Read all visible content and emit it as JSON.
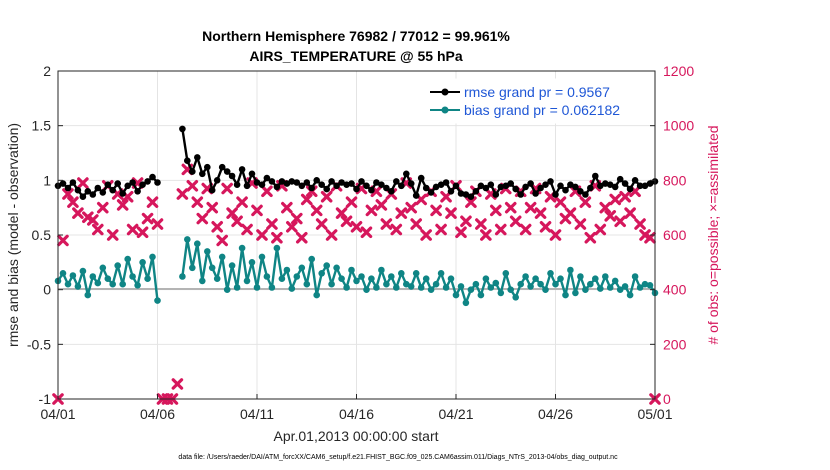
{
  "chart_data": {
    "type": "line",
    "title": "Northern Hemisphere 76982 / 77012 = 99.961%",
    "subtitle": "AIRS_TEMPERATURE @ 55 hPa",
    "xlabel": "Apr.01,2013 00:00:00 start",
    "ylabel": "rmse and bias (model - observation)",
    "ylabel_right": "# of obs: o=possible; ×=assimilated",
    "footer": "data file: /Users/raeder/DAI/ATM_forcXX/CAM6_setup/f.e21.FHIST_BGC.f09_025.CAM6assim.011/Diags_NTrS_2013-04/obs_diag_output.nc",
    "xlim": [
      0,
      30
    ],
    "ylim": [
      -1,
      2
    ],
    "ylim_right": [
      0,
      1200
    ],
    "x_ticks": [
      0,
      5,
      10,
      15,
      20,
      25,
      30
    ],
    "x_tick_labels": [
      "04/01",
      "04/06",
      "04/11",
      "04/16",
      "04/21",
      "04/26",
      "05/01"
    ],
    "y_ticks": [
      -1,
      -0.5,
      0,
      0.5,
      1,
      1.5,
      2
    ],
    "y_tick_labels": [
      "-1",
      "-0.5",
      "0",
      "0.5",
      "1",
      "1.5",
      "2"
    ],
    "y_right_ticks": [
      0,
      200,
      400,
      600,
      800,
      1000,
      1200
    ],
    "y_right_tick_labels": [
      "0",
      "200",
      "400",
      "600",
      "800",
      "1000",
      "1200"
    ],
    "grid": true,
    "legend_position": "top-right",
    "colors": {
      "rmse": "#000000",
      "bias": "#0f8585",
      "obs": "#d6175c",
      "legend_text": "#1f57d6",
      "zero_line": "#b4b4b4",
      "grid": "#e4e4e4"
    },
    "series": [
      {
        "name": "rmse grand pr = 0.9567",
        "key": "rmse",
        "segments": [
          {
            "x": [
              0.0,
              0.25,
              0.5,
              0.75,
              1.0,
              1.25,
              1.5,
              1.75,
              2.0,
              2.25,
              2.5,
              2.75,
              3.0,
              3.25,
              3.5,
              3.75,
              4.0,
              4.25,
              4.5,
              4.75,
              5.0
            ],
            "y": [
              0.95,
              0.97,
              0.93,
              0.98,
              0.91,
              0.85,
              0.9,
              0.87,
              0.93,
              0.89,
              0.96,
              0.91,
              0.97,
              0.88,
              0.95,
              0.98,
              0.9,
              0.96,
              0.99,
              1.03,
              0.98
            ]
          },
          {
            "x": [
              6.25,
              6.5,
              6.75,
              7.0,
              7.25,
              7.5,
              7.75,
              8.0,
              8.25,
              8.5,
              8.75,
              9.0,
              9.25,
              9.5,
              9.75,
              10.0,
              10.25,
              10.5,
              10.75,
              11.0,
              11.25,
              11.5,
              11.75,
              12.0,
              12.25,
              12.5,
              12.75,
              13.0,
              13.25,
              13.5,
              13.75,
              14.0,
              14.25,
              14.5,
              14.75,
              15.0,
              15.25,
              15.5,
              15.75,
              16.0,
              16.25,
              16.5,
              16.75,
              17.0,
              17.25,
              17.5,
              17.75,
              18.0,
              18.25,
              18.5,
              18.75,
              19.0,
              19.25,
              19.5,
              19.75,
              20.0,
              20.25,
              20.5,
              20.75,
              21.0,
              21.25,
              21.5,
              21.75,
              22.0,
              22.25,
              22.5,
              22.75,
              23.0,
              23.25,
              23.5,
              23.75,
              24.0,
              24.25,
              24.5,
              24.75,
              25.0,
              25.25,
              25.5,
              25.75,
              26.0,
              26.25,
              26.5,
              26.75,
              27.0,
              27.25,
              27.5,
              27.75,
              28.0,
              28.25,
              28.5,
              28.75,
              29.0,
              29.25,
              29.5,
              29.75,
              30.0
            ],
            "y": [
              1.47,
              1.18,
              1.08,
              1.21,
              1.06,
              1.12,
              0.91,
              1.0,
              1.12,
              1.08,
              1.04,
              0.96,
              1.1,
              0.95,
              1.06,
              0.98,
              0.96,
              1.02,
              0.99,
              0.94,
              0.99,
              0.97,
              0.99,
              0.98,
              0.95,
              0.98,
              0.93,
              1.0,
              0.96,
              0.92,
              0.99,
              0.95,
              0.98,
              0.96,
              0.97,
              0.92,
              0.99,
              0.95,
              0.91,
              0.98,
              0.96,
              0.93,
              0.9,
              0.99,
              0.95,
              1.06,
              0.97,
              0.86,
              1.02,
              0.93,
              0.89,
              0.94,
              0.96,
              0.98,
              0.9,
              0.95,
              0.88,
              0.87,
              0.85,
              0.9,
              0.95,
              0.93,
              0.96,
              0.87,
              0.94,
              0.95,
              0.97,
              0.92,
              0.87,
              0.94,
              0.97,
              0.88,
              0.93,
              0.96,
              0.99,
              0.87,
              0.95,
              0.91,
              0.96,
              0.94,
              0.9,
              0.87,
              0.93,
              1.04,
              0.95,
              0.97,
              0.96,
              0.94,
              1.01,
              0.97,
              0.92,
              1.0,
              0.95,
              0.95,
              0.97,
              0.99
            ]
          }
        ]
      },
      {
        "name": "bias grand pr = 0.062182",
        "key": "bias",
        "segments": [
          {
            "x": [
              0.0,
              0.25,
              0.5,
              0.75,
              1.0,
              1.25,
              1.5,
              1.75,
              2.0,
              2.25,
              2.5,
              2.75,
              3.0,
              3.25,
              3.5,
              3.75,
              4.0,
              4.25,
              4.5,
              4.75,
              5.0
            ],
            "y": [
              0.08,
              0.15,
              0.05,
              0.13,
              0.03,
              0.17,
              -0.05,
              0.12,
              0.06,
              0.2,
              0.1,
              0.05,
              0.22,
              0.05,
              0.28,
              0.12,
              0.04,
              0.25,
              0.1,
              0.3,
              -0.1
            ]
          },
          {
            "x": [
              6.25,
              6.5,
              6.75,
              7.0,
              7.25,
              7.5,
              7.75,
              8.0,
              8.25,
              8.5,
              8.75,
              9.0,
              9.25,
              9.5,
              9.75,
              10.0,
              10.25,
              10.5,
              10.75,
              11.0,
              11.25,
              11.5,
              11.75,
              12.0,
              12.25,
              12.5,
              12.75,
              13.0,
              13.25,
              13.5,
              13.75,
              14.0,
              14.25,
              14.5,
              14.75,
              15.0,
              15.25,
              15.5,
              15.75,
              16.0,
              16.25,
              16.5,
              16.75,
              17.0,
              17.25,
              17.5,
              17.75,
              18.0,
              18.25,
              18.5,
              18.75,
              19.0,
              19.25,
              19.5,
              19.75,
              20.0,
              20.25,
              20.5,
              20.75,
              21.0,
              21.25,
              21.5,
              21.75,
              22.0,
              22.25,
              22.5,
              22.75,
              23.0,
              23.25,
              23.5,
              23.75,
              24.0,
              24.25,
              24.5,
              24.75,
              25.0,
              25.25,
              25.5,
              25.75,
              26.0,
              26.25,
              26.5,
              26.75,
              27.0,
              27.25,
              27.5,
              27.75,
              28.0,
              28.25,
              28.5,
              28.75,
              29.0,
              29.25,
              29.5,
              29.75,
              30.0
            ],
            "y": [
              0.12,
              0.46,
              0.2,
              0.42,
              0.08,
              0.35,
              0.2,
              0.1,
              0.3,
              0.0,
              0.22,
              0.02,
              0.38,
              0.08,
              0.25,
              0.02,
              0.3,
              0.12,
              0.02,
              0.38,
              0.1,
              0.18,
              0.01,
              0.12,
              0.2,
              0.05,
              0.28,
              -0.05,
              0.15,
              0.22,
              0.05,
              0.2,
              0.1,
              0.02,
              0.18,
              0.08,
              0.12,
              0.0,
              0.1,
              0.02,
              0.18,
              0.05,
              0.12,
              0.02,
              0.15,
              0.05,
              0.03,
              0.15,
              0.02,
              0.1,
              0.0,
              0.05,
              0.15,
              0.02,
              0.1,
              -0.05,
              0.03,
              -0.12,
              0.0,
              0.05,
              -0.05,
              0.1,
              0.02,
              0.06,
              -0.03,
              0.15,
              0.0,
              -0.07,
              0.05,
              0.12,
              0.03,
              0.1,
              0.05,
              0.0,
              0.15,
              0.05,
              0.1,
              -0.05,
              0.18,
              -0.03,
              0.12,
              0.0,
              0.05,
              0.1,
              0.01,
              0.12,
              0.02,
              0.08,
              0.0,
              0.03,
              -0.05,
              0.12,
              0.02,
              0.05,
              0.04,
              -0.03
            ]
          }
        ]
      },
      {
        "name": "# of obs assimilated",
        "key": "obs",
        "axis": "right",
        "marker": "x",
        "x": [
          0.0,
          0.25,
          0.5,
          0.75,
          1.0,
          1.25,
          1.5,
          1.75,
          2.0,
          2.25,
          2.5,
          2.75,
          3.0,
          3.25,
          3.5,
          3.75,
          4.0,
          4.25,
          4.5,
          4.75,
          5.0,
          5.25,
          5.5,
          5.75,
          6.0,
          6.25,
          6.5,
          6.75,
          7.0,
          7.25,
          7.5,
          7.75,
          8.0,
          8.25,
          8.5,
          8.75,
          9.0,
          9.25,
          9.5,
          9.75,
          10.0,
          10.25,
          10.5,
          10.75,
          11.0,
          11.25,
          11.5,
          11.75,
          12.0,
          12.25,
          12.5,
          12.75,
          13.0,
          13.25,
          13.5,
          13.75,
          14.0,
          14.25,
          14.5,
          14.75,
          15.0,
          15.25,
          15.5,
          15.75,
          16.0,
          16.25,
          16.5,
          16.75,
          17.0,
          17.25,
          17.5,
          17.75,
          18.0,
          18.25,
          18.5,
          18.75,
          19.0,
          19.25,
          19.5,
          19.75,
          20.0,
          20.25,
          20.5,
          20.75,
          21.0,
          21.25,
          21.5,
          21.75,
          22.0,
          22.25,
          22.5,
          22.75,
          23.0,
          23.25,
          23.5,
          23.75,
          24.0,
          24.25,
          24.5,
          24.75,
          25.0,
          25.25,
          25.5,
          25.75,
          26.0,
          26.25,
          26.5,
          26.75,
          27.0,
          27.25,
          27.5,
          27.75,
          28.0,
          28.25,
          28.5,
          28.75,
          29.0,
          29.25,
          29.5,
          29.75,
          30.0
        ],
        "y": [
          0,
          580,
          750,
          720,
          680,
          790,
          665,
          655,
          620,
          700,
          780,
          600,
          750,
          710,
          740,
          620,
          790,
          610,
          660,
          720,
          640,
          0,
          0,
          0,
          55,
          750,
          840,
          780,
          720,
          660,
          770,
          700,
          630,
          580,
          770,
          680,
          650,
          720,
          620,
          790,
          690,
          600,
          760,
          640,
          590,
          780,
          700,
          630,
          660,
          590,
          730,
          760,
          690,
          640,
          740,
          600,
          780,
          680,
          650,
          720,
          630,
          770,
          610,
          690,
          760,
          710,
          640,
          750,
          620,
          680,
          790,
          700,
          640,
          730,
          600,
          760,
          690,
          620,
          740,
          680,
          780,
          610,
          650,
          720,
          760,
          640,
          600,
          750,
          690,
          620,
          770,
          700,
          650,
          760,
          620,
          700,
          770,
          680,
          630,
          740,
          600,
          720,
          660,
          680,
          760,
          640,
          720,
          590,
          780,
          620,
          700,
          670,
          730,
          650,
          740,
          680,
          760,
          640,
          600,
          590,
          0
        ]
      }
    ]
  }
}
